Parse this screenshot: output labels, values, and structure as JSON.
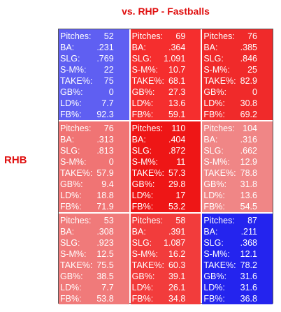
{
  "title": "vs. RHP - Fastballs",
  "side_label": "RHB",
  "stat_labels": [
    "Pitches:",
    "BA:",
    "SLG:",
    "S-M%:",
    "TAKE%:",
    "GB%:",
    "LD%:",
    "FB%:"
  ],
  "cells": [
    {
      "color": "#5f5ff2",
      "values": [
        "52",
        ".231",
        ".769",
        "22",
        "75",
        "0",
        "7.7",
        "92.3"
      ]
    },
    {
      "color": "#f52e2e",
      "values": [
        "69",
        ".364",
        "1.091",
        "10.7",
        "68.1",
        "27.3",
        "13.6",
        "59.1"
      ]
    },
    {
      "color": "#f02a2a",
      "values": [
        "76",
        ".385",
        ".846",
        "25",
        "82.9",
        "0",
        "30.8",
        "69.2"
      ]
    },
    {
      "color": "#f07474",
      "values": [
        "76",
        ".313",
        ".813",
        "0",
        "57.9",
        "9.4",
        "18.8",
        "71.9"
      ]
    },
    {
      "color": "#ee1616",
      "values": [
        "110",
        ".404",
        ".872",
        "11",
        "57.3",
        "29.8",
        "17",
        "53.2"
      ]
    },
    {
      "color": "#f08686",
      "values": [
        "104",
        ".316",
        ".662",
        "12.9",
        "78.8",
        "31.8",
        "13.6",
        "54.5"
      ]
    },
    {
      "color": "#f07a7a",
      "values": [
        "53",
        ".308",
        ".923",
        "12.5",
        "75.5",
        "38.5",
        "7.7",
        "53.8"
      ]
    },
    {
      "color": "#f23c3c",
      "values": [
        "58",
        ".391",
        "1.087",
        "16.2",
        "60.3",
        "39.1",
        "26.1",
        "34.8"
      ]
    },
    {
      "color": "#2424ee",
      "values": [
        "87",
        ".211",
        ".368",
        "12.1",
        "78.2",
        "31.6",
        "31.6",
        "36.8"
      ]
    }
  ]
}
